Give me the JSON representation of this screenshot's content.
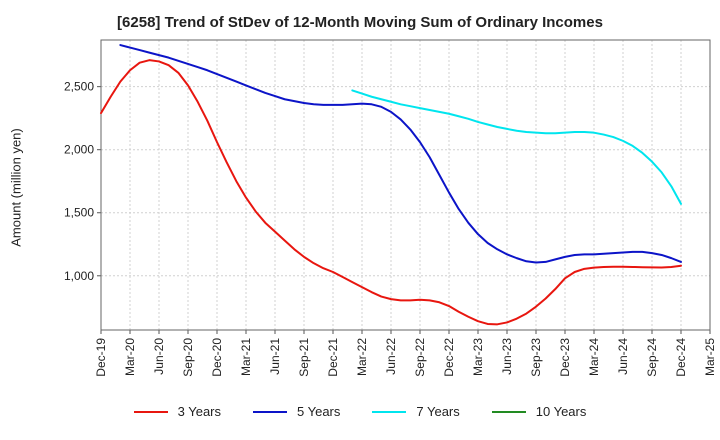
{
  "chart_data": {
    "type": "line",
    "title": "[6258]  Trend of StDev of 12-Month Moving Sum of Ordinary Incomes",
    "ylabel": "Amount (million yen)",
    "xlabel": "",
    "ylim": [
      570,
      2870
    ],
    "yticks": [
      1000,
      1500,
      2000,
      2500
    ],
    "ytick_labels": [
      "1,000",
      "1,500",
      "2,000",
      "2,500"
    ],
    "x_labels": [
      "Dec-19",
      "Mar-20",
      "Jun-20",
      "Sep-20",
      "Dec-20",
      "Mar-21",
      "Jun-21",
      "Sep-21",
      "Dec-21",
      "Mar-22",
      "Jun-22",
      "Sep-22",
      "Dec-22",
      "Mar-23",
      "Jun-23",
      "Sep-23",
      "Dec-23",
      "Mar-24",
      "Jun-24",
      "Sep-24",
      "Dec-24",
      "Mar-25"
    ],
    "grid": true,
    "legend_position": "bottom",
    "series": [
      {
        "name": "3 Years",
        "color": "#e8160f",
        "points": [
          [
            "Dec-19",
            2290
          ],
          [
            "Jan-20",
            2420
          ],
          [
            "Feb-20",
            2540
          ],
          [
            "Mar-20",
            2630
          ],
          [
            "Apr-20",
            2690
          ],
          [
            "May-20",
            2710
          ],
          [
            "Jun-20",
            2700
          ],
          [
            "Jul-20",
            2670
          ],
          [
            "Aug-20",
            2610
          ],
          [
            "Sep-20",
            2510
          ],
          [
            "Oct-20",
            2380
          ],
          [
            "Nov-20",
            2230
          ],
          [
            "Dec-20",
            2060
          ],
          [
            "Jan-21",
            1900
          ],
          [
            "Feb-21",
            1750
          ],
          [
            "Mar-21",
            1620
          ],
          [
            "Apr-21",
            1510
          ],
          [
            "May-21",
            1420
          ],
          [
            "Jun-21",
            1350
          ],
          [
            "Jul-21",
            1280
          ],
          [
            "Aug-21",
            1210
          ],
          [
            "Sep-21",
            1150
          ],
          [
            "Oct-21",
            1100
          ],
          [
            "Nov-21",
            1060
          ],
          [
            "Dec-21",
            1030
          ],
          [
            "Jan-22",
            990
          ],
          [
            "Feb-22",
            950
          ],
          [
            "Mar-22",
            910
          ],
          [
            "Apr-22",
            870
          ],
          [
            "May-22",
            835
          ],
          [
            "Jun-22",
            815
          ],
          [
            "Jul-22",
            805
          ],
          [
            "Aug-22",
            805
          ],
          [
            "Sep-22",
            810
          ],
          [
            "Oct-22",
            805
          ],
          [
            "Nov-22",
            790
          ],
          [
            "Dec-22",
            760
          ],
          [
            "Jan-23",
            715
          ],
          [
            "Feb-23",
            675
          ],
          [
            "Mar-23",
            640
          ],
          [
            "Apr-23",
            618
          ],
          [
            "May-23",
            615
          ],
          [
            "Jun-23",
            630
          ],
          [
            "Jul-23",
            660
          ],
          [
            "Aug-23",
            700
          ],
          [
            "Sep-23",
            755
          ],
          [
            "Oct-23",
            820
          ],
          [
            "Nov-23",
            895
          ],
          [
            "Dec-23",
            980
          ],
          [
            "Jan-24",
            1030
          ],
          [
            "Feb-24",
            1055
          ],
          [
            "Mar-24",
            1065
          ],
          [
            "Apr-24",
            1070
          ],
          [
            "May-24",
            1072
          ],
          [
            "Jun-24",
            1072
          ],
          [
            "Jul-24",
            1070
          ],
          [
            "Aug-24",
            1068
          ],
          [
            "Sep-24",
            1067
          ],
          [
            "Oct-24",
            1066
          ],
          [
            "Nov-24",
            1070
          ],
          [
            "Dec-24",
            1080
          ]
        ]
      },
      {
        "name": "5 Years",
        "color": "#0c14c8",
        "points": [
          [
            "Feb-20",
            2830
          ],
          [
            "Mar-20",
            2810
          ],
          [
            "Apr-20",
            2790
          ],
          [
            "May-20",
            2770
          ],
          [
            "Jun-20",
            2750
          ],
          [
            "Jul-20",
            2730
          ],
          [
            "Aug-20",
            2705
          ],
          [
            "Sep-20",
            2680
          ],
          [
            "Oct-20",
            2655
          ],
          [
            "Nov-20",
            2630
          ],
          [
            "Dec-20",
            2600
          ],
          [
            "Jan-21",
            2570
          ],
          [
            "Feb-21",
            2540
          ],
          [
            "Mar-21",
            2510
          ],
          [
            "Apr-21",
            2480
          ],
          [
            "May-21",
            2450
          ],
          [
            "Jun-21",
            2425
          ],
          [
            "Jul-21",
            2400
          ],
          [
            "Aug-21",
            2385
          ],
          [
            "Sep-21",
            2370
          ],
          [
            "Oct-21",
            2360
          ],
          [
            "Nov-21",
            2355
          ],
          [
            "Dec-21",
            2355
          ],
          [
            "Jan-22",
            2355
          ],
          [
            "Feb-22",
            2360
          ],
          [
            "Mar-22",
            2365
          ],
          [
            "Apr-22",
            2360
          ],
          [
            "May-22",
            2340
          ],
          [
            "Jun-22",
            2300
          ],
          [
            "Jul-22",
            2240
          ],
          [
            "Aug-22",
            2160
          ],
          [
            "Sep-22",
            2060
          ],
          [
            "Oct-22",
            1940
          ],
          [
            "Nov-22",
            1800
          ],
          [
            "Dec-22",
            1660
          ],
          [
            "Jan-23",
            1530
          ],
          [
            "Feb-23",
            1420
          ],
          [
            "Mar-23",
            1330
          ],
          [
            "Apr-23",
            1260
          ],
          [
            "May-23",
            1210
          ],
          [
            "Jun-23",
            1170
          ],
          [
            "Jul-23",
            1140
          ],
          [
            "Aug-23",
            1115
          ],
          [
            "Sep-23",
            1105
          ],
          [
            "Oct-23",
            1110
          ],
          [
            "Nov-23",
            1130
          ],
          [
            "Dec-23",
            1150
          ],
          [
            "Jan-24",
            1165
          ],
          [
            "Feb-24",
            1170
          ],
          [
            "Mar-24",
            1170
          ],
          [
            "Apr-24",
            1175
          ],
          [
            "May-24",
            1180
          ],
          [
            "Jun-24",
            1185
          ],
          [
            "Jul-24",
            1190
          ],
          [
            "Aug-24",
            1190
          ],
          [
            "Sep-24",
            1180
          ],
          [
            "Oct-24",
            1165
          ],
          [
            "Nov-24",
            1140
          ],
          [
            "Dec-24",
            1110
          ]
        ]
      },
      {
        "name": "7 Years",
        "color": "#00e5ee",
        "points": [
          [
            "Feb-22",
            2470
          ],
          [
            "Mar-22",
            2445
          ],
          [
            "Apr-22",
            2420
          ],
          [
            "May-22",
            2400
          ],
          [
            "Jun-22",
            2380
          ],
          [
            "Jul-22",
            2360
          ],
          [
            "Aug-22",
            2345
          ],
          [
            "Sep-22",
            2330
          ],
          [
            "Oct-22",
            2315
          ],
          [
            "Nov-22",
            2300
          ],
          [
            "Dec-22",
            2285
          ],
          [
            "Jan-23",
            2265
          ],
          [
            "Feb-23",
            2245
          ],
          [
            "Mar-23",
            2220
          ],
          [
            "Apr-23",
            2200
          ],
          [
            "May-23",
            2180
          ],
          [
            "Jun-23",
            2165
          ],
          [
            "Jul-23",
            2150
          ],
          [
            "Aug-23",
            2140
          ],
          [
            "Sep-23",
            2135
          ],
          [
            "Oct-23",
            2130
          ],
          [
            "Nov-23",
            2130
          ],
          [
            "Dec-23",
            2135
          ],
          [
            "Jan-24",
            2140
          ],
          [
            "Feb-24",
            2140
          ],
          [
            "Mar-24",
            2135
          ],
          [
            "Apr-24",
            2120
          ],
          [
            "May-24",
            2100
          ],
          [
            "Jun-24",
            2070
          ],
          [
            "Jul-24",
            2030
          ],
          [
            "Aug-24",
            1975
          ],
          [
            "Sep-24",
            1905
          ],
          [
            "Oct-24",
            1820
          ],
          [
            "Nov-24",
            1710
          ],
          [
            "Dec-24",
            1570
          ]
        ]
      },
      {
        "name": "10 Years",
        "color": "#228b22",
        "points": []
      }
    ]
  }
}
